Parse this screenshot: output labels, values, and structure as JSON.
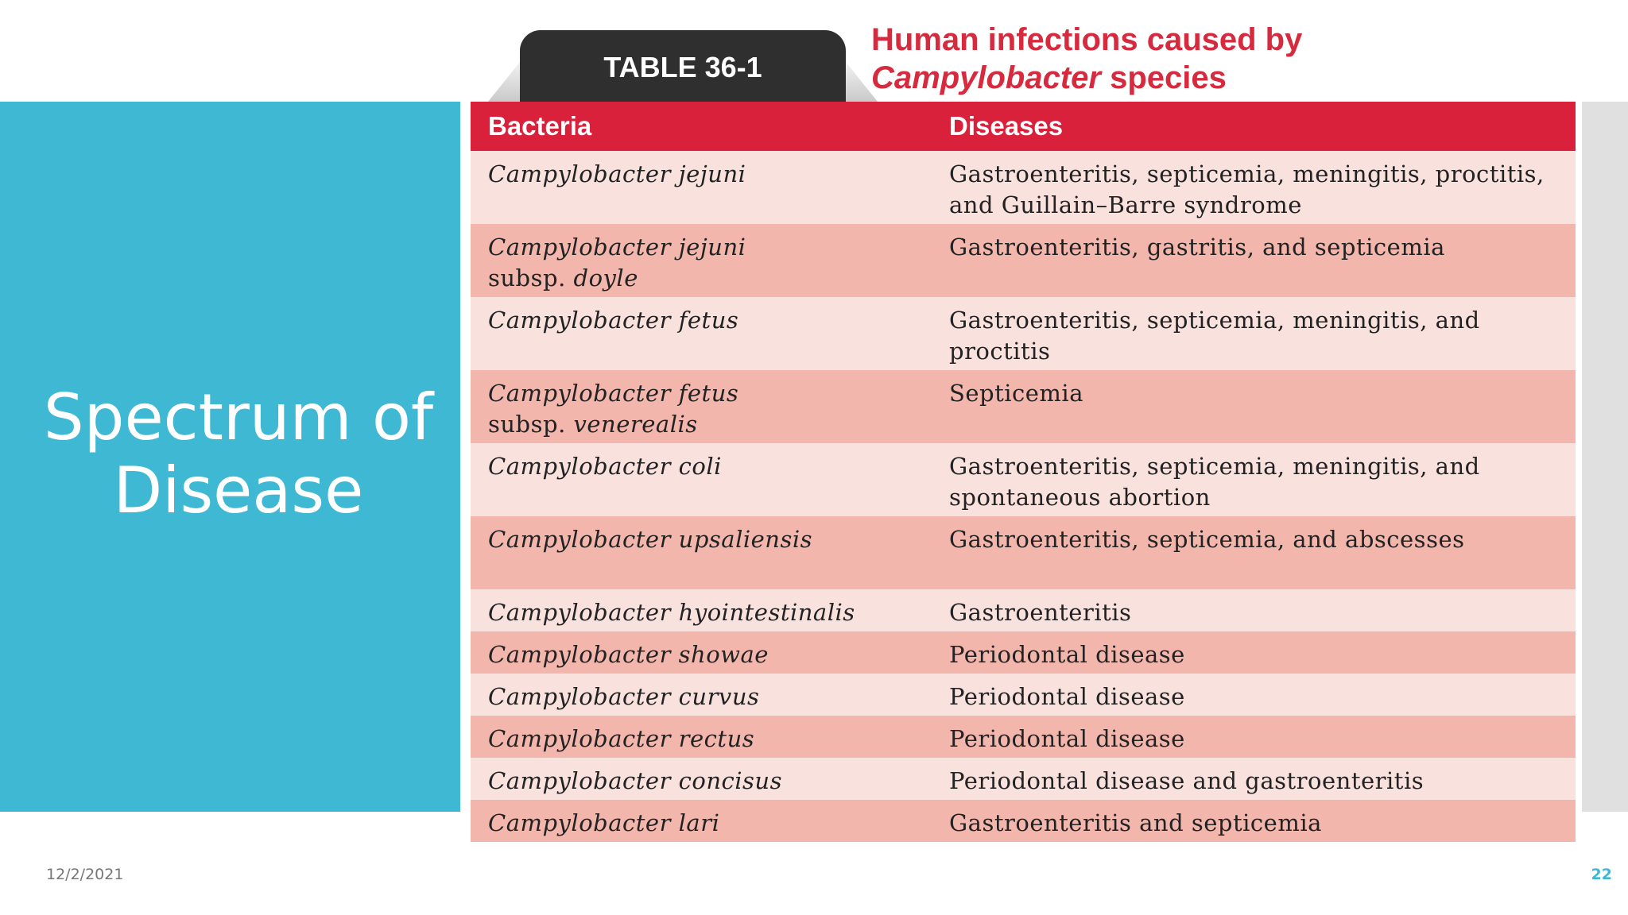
{
  "slide": {
    "title_line1": "Spectrum of",
    "title_line2": "Disease",
    "date": "12/2/2021",
    "page_number": "22"
  },
  "figure": {
    "tab_label": "TABLE 36-1",
    "caption_line1": "Human infections caused by",
    "caption_genus": "Campylobacter",
    "caption_suffix": " species"
  },
  "table": {
    "headers": [
      "Bacteria",
      "Diseases"
    ],
    "rows": [
      {
        "bacteria": "Campylobacter jejuni",
        "subsp_prefix": "",
        "subsp": "",
        "diseases": "Gastroenteritis, septicemia, meningitis, proctitis, and Guillain–Barre syndrome"
      },
      {
        "bacteria": "Campylobacter jejuni",
        "subsp_prefix": "subsp.",
        "subsp": "doyle",
        "diseases": "Gastroenteritis, gastritis, and septicemia"
      },
      {
        "bacteria": "Campylobacter fetus",
        "subsp_prefix": "",
        "subsp": "",
        "diseases": "Gastroenteritis, septicemia, meningitis, and proctitis"
      },
      {
        "bacteria": "Campylobacter fetus",
        "subsp_prefix": "subsp.",
        "subsp": "venerealis",
        "diseases": "Septicemia"
      },
      {
        "bacteria": "Campylobacter coli",
        "subsp_prefix": "",
        "subsp": "",
        "diseases": "Gastroenteritis, septicemia, meningitis, and spontaneous abortion"
      },
      {
        "bacteria": "Campylobacter upsaliensis",
        "subsp_prefix": "",
        "subsp": "",
        "diseases": "Gastroenteritis, septicemia, and abscesses"
      },
      {
        "bacteria": "Campylobacter hyointestinalis",
        "subsp_prefix": "",
        "subsp": "",
        "diseases": "Gastroenteritis"
      },
      {
        "bacteria": "Campylobacter showae",
        "subsp_prefix": "",
        "subsp": "",
        "diseases": "Periodontal disease"
      },
      {
        "bacteria": "Campylobacter curvus",
        "subsp_prefix": "",
        "subsp": "",
        "diseases": "Periodontal disease"
      },
      {
        "bacteria": "Campylobacter rectus",
        "subsp_prefix": "",
        "subsp": "",
        "diseases": "Periodontal disease"
      },
      {
        "bacteria": "Campylobacter concisus",
        "subsp_prefix": "",
        "subsp": "",
        "diseases": "Periodontal disease and gastroenteritis"
      },
      {
        "bacteria": "Campylobacter lari",
        "subsp_prefix": "",
        "subsp": "",
        "diseases": "Gastroenteritis and septicemia"
      }
    ]
  },
  "colors": {
    "accent_teal": "#3fb8d3",
    "header_red": "#d9213c",
    "row_light": "#f9e1de",
    "row_dark": "#f2b6ad",
    "caption_red": "#d62b3f"
  }
}
